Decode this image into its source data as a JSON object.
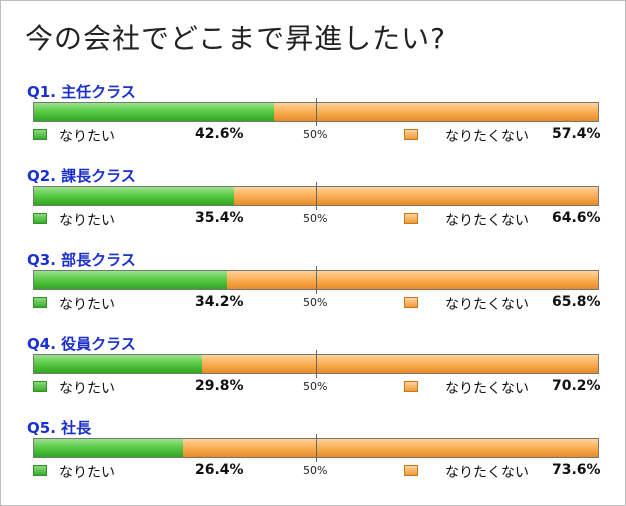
{
  "title": "今の会社でどこまで昇進したい?",
  "legend": {
    "yes": "なりたい",
    "no": "なりたくない"
  },
  "midpoint_label": "50%",
  "colors": {
    "yes": "#52c23f",
    "no": "#f6a33e",
    "question": "#1a2fcf"
  },
  "chart_data": {
    "type": "bar",
    "orientation": "horizontal",
    "stacked": true,
    "title": "今の会社でどこまで昇進したい?",
    "xlim": [
      0,
      100
    ],
    "categories": [
      "Q1. 主任クラス",
      "Q2. 課長クラス",
      "Q3. 部長クラス",
      "Q4. 役員クラス",
      "Q5. 社長"
    ],
    "series": [
      {
        "name": "なりたい",
        "values": [
          42.6,
          35.4,
          34.2,
          29.8,
          26.4
        ]
      },
      {
        "name": "なりたくない",
        "values": [
          57.4,
          64.6,
          65.8,
          70.2,
          73.6
        ]
      }
    ],
    "value_labels": {
      "yes": [
        "42.6%",
        "35.4%",
        "34.2%",
        "29.8%",
        "26.4%"
      ],
      "no": [
        "57.4%",
        "64.6%",
        "65.8%",
        "70.2%",
        "73.6%"
      ]
    }
  }
}
